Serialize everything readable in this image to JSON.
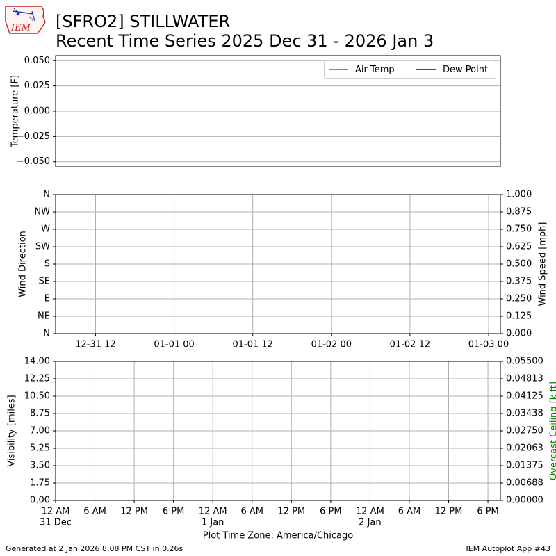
{
  "header": {
    "title_line1": "[SFRO2] STILLWATER",
    "title_line2": "Recent Time Series 2025 Dec 31 - 2026 Jan 3",
    "logo_text": "IEM"
  },
  "footer": {
    "left": "Generated at 2 Jan 2026 8:08 PM CST in 0.26s",
    "right": "IEM Autoplot App #43"
  },
  "colors": {
    "air_temp": "#e06666",
    "dew_point": "#2e5e2e",
    "ceiling_axis": "#008000",
    "grid": "#b0b0b0"
  },
  "chart_data": [
    {
      "type": "line",
      "ylabel": "Temperature [F]",
      "ylim": [
        -0.055,
        0.055
      ],
      "yticks": [
        0.05,
        0.025,
        0.0,
        -0.025,
        -0.05
      ],
      "ytick_labels": [
        "0.050",
        "0.025",
        "0.000",
        "−0.025",
        "−0.050"
      ],
      "grid": "horizontal",
      "legend_placement": "top-right",
      "series": [
        {
          "name": "Air Temp",
          "values": []
        },
        {
          "name": "Dew Point",
          "values": []
        }
      ]
    },
    {
      "type": "scatter",
      "ylabel": "Wind Direction",
      "ylabel_right": "Wind Speed [mph]",
      "ytick_labels": [
        "N",
        "NE",
        "E",
        "SE",
        "S",
        "SW",
        "W",
        "NW",
        "N"
      ],
      "ytick_labels_right": [
        "0.000",
        "0.125",
        "0.250",
        "0.375",
        "0.500",
        "0.625",
        "0.750",
        "0.875",
        "1.000"
      ],
      "ylim_right": [
        0,
        1
      ],
      "xtick_labels": [
        "12-31 12",
        "01-01 00",
        "01-01 12",
        "01-02 00",
        "01-02 12",
        "01-03 00"
      ],
      "grid": "both",
      "series": []
    },
    {
      "type": "line",
      "ylabel": "Visibility [miles]",
      "ylabel_right": "Overcast Ceiling [k ft]",
      "ylim": [
        0,
        14
      ],
      "ytick_labels": [
        "0.00",
        "1.75",
        "3.50",
        "5.25",
        "7.00",
        "8.75",
        "10.50",
        "12.25",
        "14.00"
      ],
      "ytick_labels_right": [
        "0.00000",
        "0.00688",
        "0.01375",
        "0.02063",
        "0.02750",
        "0.03438",
        "0.04125",
        "0.04813",
        "0.05500"
      ],
      "ylim_right": [
        0,
        0.055
      ],
      "xtick_labels": [
        "12 AM",
        "6 AM",
        "12 PM",
        "6 PM",
        "12 AM",
        "6 AM",
        "12 PM",
        "6 PM",
        "12 AM",
        "6 AM",
        "12 PM",
        "6 PM"
      ],
      "xtick_sublabels": {
        "0": "31 Dec",
        "4": "1 Jan",
        "8": "2 Jan"
      },
      "xlabel": "Plot Time Zone: America/Chicago",
      "grid": "both",
      "series": []
    }
  ]
}
